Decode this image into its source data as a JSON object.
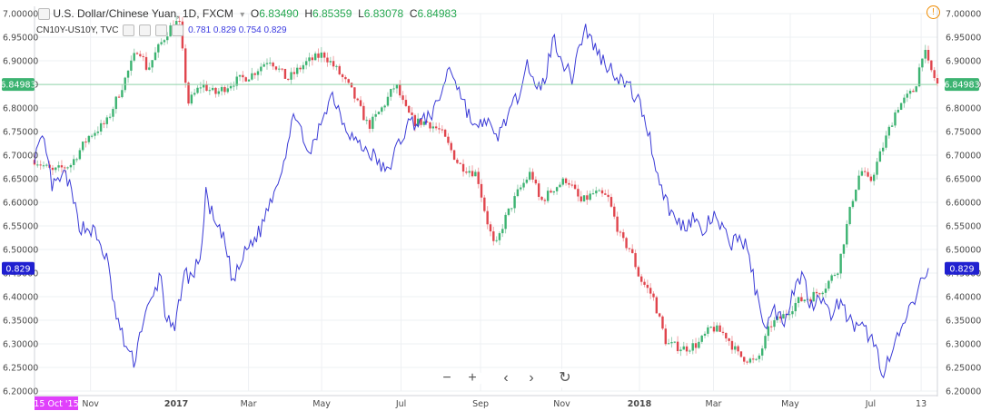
{
  "legend": {
    "symbol": "U.S. Dollar/Chinese Yuan, 1D, FXCM",
    "open_label": "O",
    "open": "6.83490",
    "high_label": "H",
    "high": "6.85359",
    "low_label": "L",
    "low": "6.83078",
    "close_label": "C",
    "close": "6.84983",
    "overlay_symbol": "CN10Y-US10Y, TVC",
    "overlay_values": "0.781  0.829  0.754  0.829"
  },
  "price_label": "6.84983",
  "overlay_label": "0.829",
  "date_label": "15 Oct '15",
  "warn_icon": "warning-circle-icon",
  "controls": [
    {
      "name": "zoom-out-button",
      "icon": "−"
    },
    {
      "name": "zoom-in-button",
      "icon": "+"
    },
    {
      "name": "scroll-left-button",
      "icon": "‹"
    },
    {
      "name": "scroll-right-button",
      "icon": "›"
    },
    {
      "name": "reset-chart-button",
      "icon": "↻"
    }
  ],
  "colors": {
    "up": "#26a69a",
    "up_fill": "#3cb371",
    "down": "#e0454d",
    "overlay": "#3a3ad6",
    "price_tag": "#3cb371",
    "overlay_tag": "#2020d0",
    "date_tag": "#e040fb"
  },
  "chart_data": {
    "type": "candlestick",
    "y_ticks": [
      "7.00000",
      "6.95000",
      "6.90000",
      "6.85000",
      "6.80000",
      "6.75000",
      "6.70000",
      "6.65000",
      "6.60000",
      "6.55000",
      "6.50000",
      "6.45000",
      "6.40000",
      "6.35000",
      "6.30000",
      "6.25000",
      "6.20000"
    ],
    "ylim": [
      6.2,
      7.0
    ],
    "x_ticks": [
      {
        "label": "Nov",
        "bold": false,
        "t": 0.062
      },
      {
        "label": "2017",
        "bold": true,
        "t": 0.157
      },
      {
        "label": "Mar",
        "bold": false,
        "t": 0.237
      },
      {
        "label": "May",
        "bold": false,
        "t": 0.318
      },
      {
        "label": "Jul",
        "bold": false,
        "t": 0.406
      },
      {
        "label": "Sep",
        "bold": false,
        "t": 0.494
      },
      {
        "label": "Nov",
        "bold": false,
        "t": 0.584
      },
      {
        "label": "2018",
        "bold": true,
        "t": 0.67
      },
      {
        "label": "Mar",
        "bold": false,
        "t": 0.752
      },
      {
        "label": "May",
        "bold": false,
        "t": 0.837
      },
      {
        "label": "Jul",
        "bold": false,
        "t": 0.926
      },
      {
        "label": "13",
        "bold": false,
        "t": 0.982
      }
    ],
    "price_anchors": [
      [
        0,
        6.69
      ],
      [
        0.02,
        6.665
      ],
      [
        0.04,
        6.68
      ],
      [
        0.06,
        6.74
      ],
      [
        0.08,
        6.77
      ],
      [
        0.1,
        6.86
      ],
      [
        0.115,
        6.93
      ],
      [
        0.125,
        6.88
      ],
      [
        0.135,
        6.92
      ],
      [
        0.15,
        6.97
      ],
      [
        0.16,
        6.985
      ],
      [
        0.17,
        6.81
      ],
      [
        0.185,
        6.85
      ],
      [
        0.2,
        6.83
      ],
      [
        0.22,
        6.855
      ],
      [
        0.24,
        6.87
      ],
      [
        0.26,
        6.905
      ],
      [
        0.28,
        6.86
      ],
      [
        0.3,
        6.895
      ],
      [
        0.32,
        6.915
      ],
      [
        0.335,
        6.88
      ],
      [
        0.35,
        6.84
      ],
      [
        0.37,
        6.76
      ],
      [
        0.385,
        6.8
      ],
      [
        0.4,
        6.85
      ],
      [
        0.41,
        6.8
      ],
      [
        0.42,
        6.77
      ],
      [
        0.435,
        6.77
      ],
      [
        0.45,
        6.75
      ],
      [
        0.47,
        6.68
      ],
      [
        0.49,
        6.66
      ],
      [
        0.5,
        6.57
      ],
      [
        0.51,
        6.5
      ],
      [
        0.52,
        6.56
      ],
      [
        0.535,
        6.62
      ],
      [
        0.55,
        6.665
      ],
      [
        0.56,
        6.6
      ],
      [
        0.575,
        6.63
      ],
      [
        0.59,
        6.65
      ],
      [
        0.605,
        6.6
      ],
      [
        0.62,
        6.62
      ],
      [
        0.635,
        6.61
      ],
      [
        0.65,
        6.52
      ],
      [
        0.66,
        6.5
      ],
      [
        0.67,
        6.44
      ],
      [
        0.685,
        6.4
      ],
      [
        0.7,
        6.3
      ],
      [
        0.72,
        6.29
      ],
      [
        0.735,
        6.3
      ],
      [
        0.75,
        6.335
      ],
      [
        0.765,
        6.32
      ],
      [
        0.78,
        6.275
      ],
      [
        0.8,
        6.26
      ],
      [
        0.815,
        6.34
      ],
      [
        0.83,
        6.36
      ],
      [
        0.845,
        6.39
      ],
      [
        0.86,
        6.4
      ],
      [
        0.875,
        6.42
      ],
      [
        0.89,
        6.46
      ],
      [
        0.905,
        6.6
      ],
      [
        0.915,
        6.67
      ],
      [
        0.925,
        6.64
      ],
      [
        0.94,
        6.72
      ],
      [
        0.955,
        6.8
      ],
      [
        0.965,
        6.82
      ],
      [
        0.975,
        6.84
      ],
      [
        0.985,
        6.93
      ],
      [
        0.988,
        6.9
      ],
      [
        1.0,
        6.85
      ]
    ],
    "overlay_anchors": [
      [
        0,
        6.7
      ],
      [
        0.01,
        6.73
      ],
      [
        0.02,
        6.63
      ],
      [
        0.035,
        6.66
      ],
      [
        0.05,
        6.55
      ],
      [
        0.065,
        6.54
      ],
      [
        0.08,
        6.48
      ],
      [
        0.09,
        6.36
      ],
      [
        0.1,
        6.3
      ],
      [
        0.11,
        6.26
      ],
      [
        0.12,
        6.35
      ],
      [
        0.13,
        6.39
      ],
      [
        0.14,
        6.45
      ],
      [
        0.145,
        6.36
      ],
      [
        0.155,
        6.32
      ],
      [
        0.165,
        6.45
      ],
      [
        0.175,
        6.44
      ],
      [
        0.185,
        6.5
      ],
      [
        0.19,
        6.62
      ],
      [
        0.2,
        6.55
      ],
      [
        0.21,
        6.52
      ],
      [
        0.22,
        6.43
      ],
      [
        0.235,
        6.5
      ],
      [
        0.25,
        6.54
      ],
      [
        0.26,
        6.6
      ],
      [
        0.27,
        6.65
      ],
      [
        0.28,
        6.72
      ],
      [
        0.29,
        6.8
      ],
      [
        0.3,
        6.7
      ],
      [
        0.31,
        6.72
      ],
      [
        0.32,
        6.79
      ],
      [
        0.33,
        6.83
      ],
      [
        0.345,
        6.76
      ],
      [
        0.36,
        6.72
      ],
      [
        0.375,
        6.7
      ],
      [
        0.39,
        6.66
      ],
      [
        0.4,
        6.71
      ],
      [
        0.415,
        6.77
      ],
      [
        0.43,
        6.77
      ],
      [
        0.445,
        6.8
      ],
      [
        0.46,
        6.89
      ],
      [
        0.47,
        6.84
      ],
      [
        0.48,
        6.79
      ],
      [
        0.49,
        6.75
      ],
      [
        0.5,
        6.78
      ],
      [
        0.51,
        6.73
      ],
      [
        0.52,
        6.77
      ],
      [
        0.535,
        6.82
      ],
      [
        0.545,
        6.91
      ],
      [
        0.555,
        6.83
      ],
      [
        0.565,
        6.86
      ],
      [
        0.575,
        6.95
      ],
      [
        0.585,
        6.9
      ],
      [
        0.595,
        6.86
      ],
      [
        0.6,
        6.91
      ],
      [
        0.61,
        6.97
      ],
      [
        0.62,
        6.93
      ],
      [
        0.63,
        6.9
      ],
      [
        0.645,
        6.87
      ],
      [
        0.66,
        6.84
      ],
      [
        0.67,
        6.81
      ],
      [
        0.68,
        6.75
      ],
      [
        0.69,
        6.66
      ],
      [
        0.7,
        6.6
      ],
      [
        0.71,
        6.56
      ],
      [
        0.72,
        6.55
      ],
      [
        0.73,
        6.57
      ],
      [
        0.74,
        6.53
      ],
      [
        0.75,
        6.57
      ],
      [
        0.76,
        6.55
      ],
      [
        0.77,
        6.51
      ],
      [
        0.78,
        6.53
      ],
      [
        0.79,
        6.5
      ],
      [
        0.8,
        6.4
      ],
      [
        0.81,
        6.34
      ],
      [
        0.82,
        6.37
      ],
      [
        0.83,
        6.35
      ],
      [
        0.84,
        6.41
      ],
      [
        0.85,
        6.45
      ],
      [
        0.86,
        6.38
      ],
      [
        0.87,
        6.41
      ],
      [
        0.88,
        6.36
      ],
      [
        0.89,
        6.39
      ],
      [
        0.9,
        6.36
      ],
      [
        0.91,
        6.33
      ],
      [
        0.92,
        6.33
      ],
      [
        0.93,
        6.3
      ],
      [
        0.935,
        6.27
      ],
      [
        0.94,
        6.24
      ],
      [
        0.95,
        6.28
      ],
      [
        0.96,
        6.33
      ],
      [
        0.97,
        6.37
      ],
      [
        0.98,
        6.42
      ],
      [
        0.99,
        6.46
      ]
    ]
  }
}
